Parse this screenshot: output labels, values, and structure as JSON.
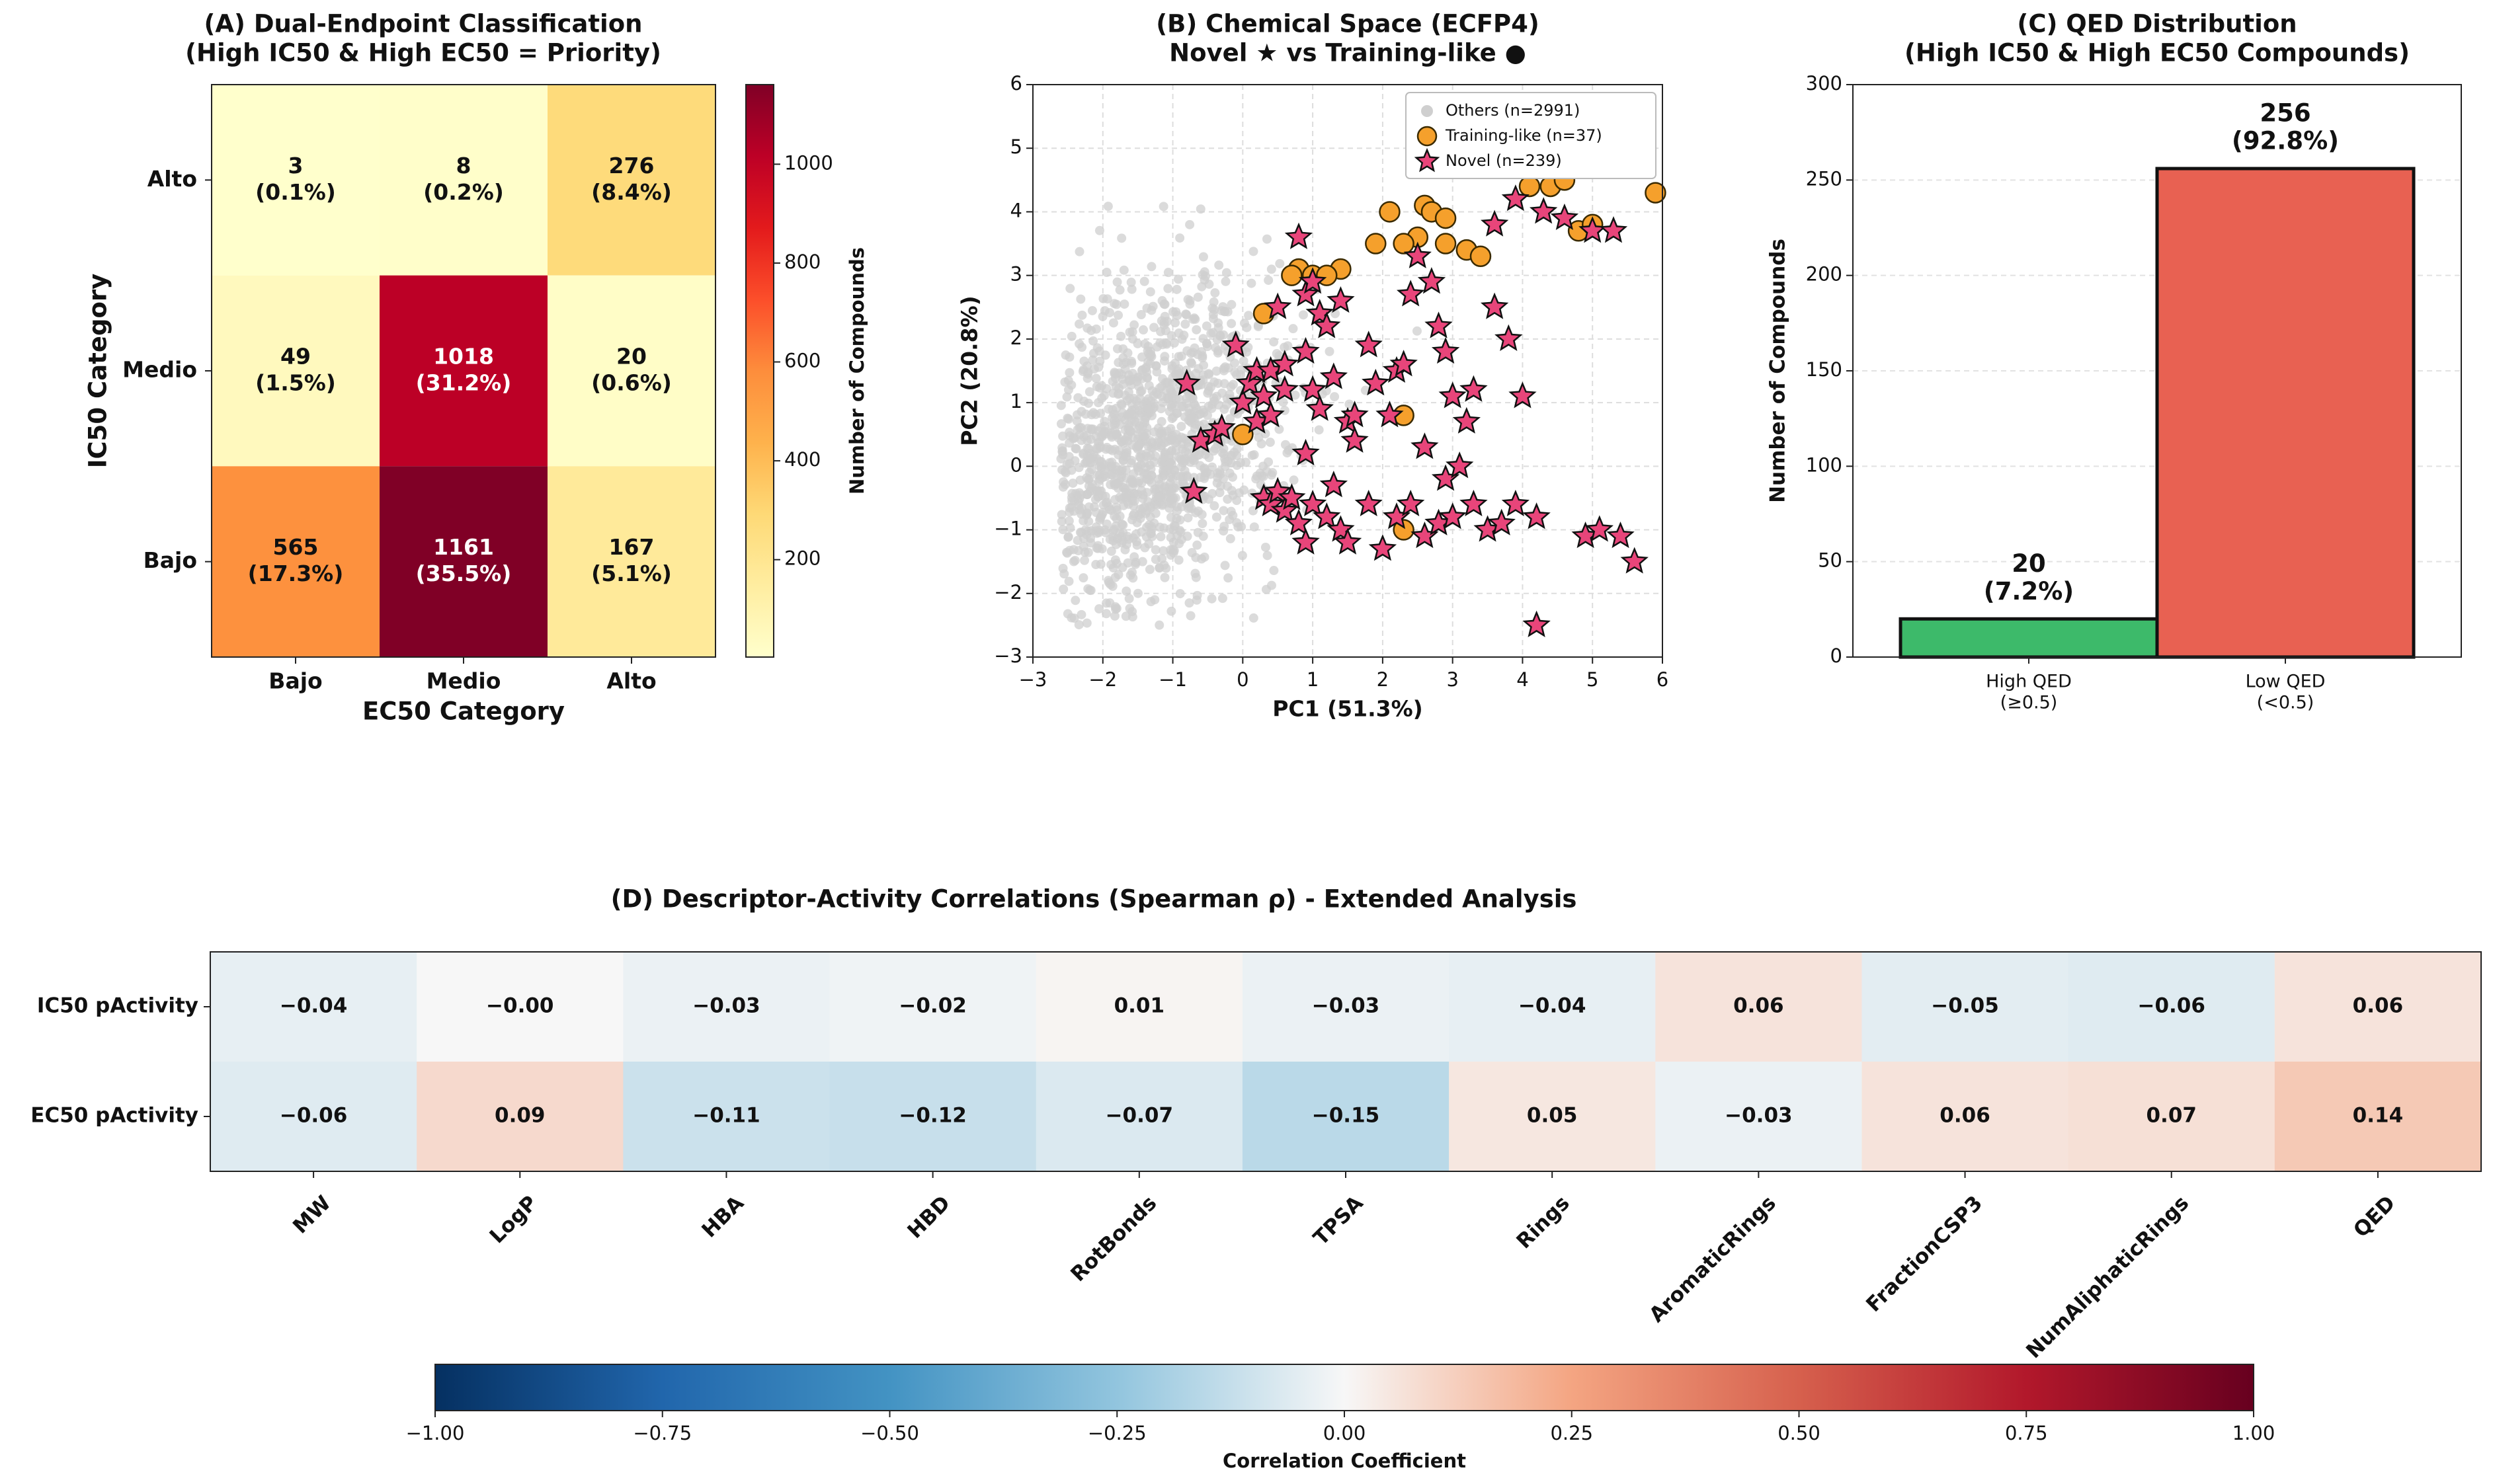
{
  "chart_data": [
    {
      "id": "A",
      "type": "heatmap",
      "title": "(A) Dual-Endpoint Classification",
      "subtitle": "(High IC50 & High EC50 = Priority)",
      "xlabel": "EC50 Category",
      "ylabel": "IC50 Category",
      "x_categories": [
        "Bajo",
        "Medio",
        "Alto"
      ],
      "y_categories": [
        "Alto",
        "Medio",
        "Bajo"
      ],
      "counts": [
        [
          3,
          8,
          276
        ],
        [
          49,
          1018,
          20
        ],
        [
          565,
          1161,
          167
        ]
      ],
      "percents": [
        [
          "(0.1%)",
          "(0.2%)",
          "(8.4%)"
        ],
        [
          "(1.5%)",
          "(31.2%)",
          "(0.6%)"
        ],
        [
          "(17.3%)",
          "(35.5%)",
          "(5.1%)"
        ]
      ],
      "colorbar": {
        "label": "Number of Compounds",
        "range": [
          3,
          1161
        ],
        "ticks": [
          200,
          400,
          600,
          800,
          1000
        ]
      }
    },
    {
      "id": "B",
      "type": "scatter",
      "title": "(B) Chemical Space (ECFP4)",
      "subtitle": "Novel ★ vs Training-like ●",
      "xlabel": "PC1 (51.3%)",
      "ylabel": "PC2 (20.8%)",
      "xlim": [
        -3,
        6
      ],
      "ylim": [
        -3,
        6
      ],
      "xticks": [
        -3,
        -2,
        -1,
        0,
        1,
        2,
        3,
        4,
        5,
        6
      ],
      "yticks": [
        -3,
        -2,
        -1,
        0,
        1,
        2,
        3,
        4,
        5,
        6
      ],
      "grid": true,
      "legend_position": "top-right",
      "series": [
        {
          "name": "Others (n=2991)",
          "color": "#cfcfcf",
          "cloud_center": [
            -1.4,
            0.3
          ],
          "cloud_spread": [
            1.0,
            1.2
          ]
        },
        {
          "name": "Training-like (n=37)",
          "color": "#f5a02c",
          "points": [
            [
              0.3,
              2.4
            ],
            [
              0.8,
              3.1
            ],
            [
              0.7,
              3.0
            ],
            [
              1.0,
              3.0
            ],
            [
              1.4,
              3.1
            ],
            [
              1.2,
              3.0
            ],
            [
              1.9,
              3.5
            ],
            [
              2.1,
              4.0
            ],
            [
              2.6,
              4.1
            ],
            [
              2.7,
              4.0
            ],
            [
              2.9,
              3.9
            ],
            [
              2.5,
              3.6
            ],
            [
              2.9,
              3.5
            ],
            [
              3.2,
              3.4
            ],
            [
              3.4,
              3.3
            ],
            [
              2.3,
              3.5
            ],
            [
              4.4,
              4.4
            ],
            [
              4.6,
              4.5
            ],
            [
              4.1,
              4.4
            ],
            [
              4.8,
              3.7
            ],
            [
              5.0,
              3.8
            ],
            [
              5.9,
              4.3
            ],
            [
              0.0,
              0.5
            ],
            [
              2.3,
              -1.0
            ],
            [
              2.3,
              0.8
            ]
          ]
        },
        {
          "name": "Novel (n=239)",
          "color": "#e8457a",
          "points": [
            [
              -0.8,
              1.3
            ],
            [
              -0.7,
              -0.4
            ],
            [
              -0.6,
              0.4
            ],
            [
              -0.4,
              0.5
            ],
            [
              -0.3,
              0.6
            ],
            [
              -0.1,
              1.9
            ],
            [
              0.0,
              1.0
            ],
            [
              0.1,
              1.3
            ],
            [
              0.2,
              1.5
            ],
            [
              0.3,
              1.1
            ],
            [
              0.2,
              0.7
            ],
            [
              0.4,
              1.5
            ],
            [
              0.5,
              2.5
            ],
            [
              0.6,
              1.6
            ],
            [
              0.6,
              1.2
            ],
            [
              0.4,
              0.8
            ],
            [
              0.8,
              3.6
            ],
            [
              0.9,
              2.7
            ],
            [
              1.0,
              2.9
            ],
            [
              1.1,
              2.4
            ],
            [
              1.2,
              2.2
            ],
            [
              0.9,
              1.8
            ],
            [
              1.0,
              1.2
            ],
            [
              1.1,
              0.9
            ],
            [
              1.3,
              1.4
            ],
            [
              1.4,
              2.6
            ],
            [
              1.5,
              0.7
            ],
            [
              1.6,
              0.8
            ],
            [
              1.8,
              1.9
            ],
            [
              1.9,
              1.3
            ],
            [
              2.1,
              0.8
            ],
            [
              2.2,
              1.5
            ],
            [
              2.3,
              1.6
            ],
            [
              2.4,
              2.7
            ],
            [
              2.5,
              3.3
            ],
            [
              2.7,
              2.9
            ],
            [
              2.8,
              2.2
            ],
            [
              2.9,
              1.8
            ],
            [
              3.0,
              1.1
            ],
            [
              3.2,
              0.7
            ],
            [
              3.3,
              1.2
            ],
            [
              3.6,
              2.5
            ],
            [
              3.8,
              2.0
            ],
            [
              4.0,
              1.1
            ],
            [
              4.3,
              4.0
            ],
            [
              4.6,
              3.9
            ],
            [
              5.0,
              3.7
            ],
            [
              5.3,
              3.7
            ],
            [
              3.6,
              3.8
            ],
            [
              3.9,
              4.2
            ],
            [
              0.3,
              -0.5
            ],
            [
              0.4,
              -0.6
            ],
            [
              0.5,
              -0.4
            ],
            [
              0.6,
              -0.7
            ],
            [
              0.7,
              -0.5
            ],
            [
              0.8,
              -0.9
            ],
            [
              0.9,
              -1.2
            ],
            [
              1.0,
              -0.6
            ],
            [
              1.2,
              -0.8
            ],
            [
              1.4,
              -1.0
            ],
            [
              1.5,
              -1.2
            ],
            [
              1.8,
              -0.6
            ],
            [
              2.0,
              -1.3
            ],
            [
              2.2,
              -0.8
            ],
            [
              2.4,
              -0.6
            ],
            [
              2.6,
              -1.1
            ],
            [
              2.8,
              -0.9
            ],
            [
              3.0,
              -0.8
            ],
            [
              3.3,
              -0.6
            ],
            [
              3.5,
              -1.0
            ],
            [
              3.7,
              -0.9
            ],
            [
              3.9,
              -0.6
            ],
            [
              4.2,
              -0.8
            ],
            [
              4.2,
              -2.5
            ],
            [
              4.9,
              -1.1
            ],
            [
              5.1,
              -1.0
            ],
            [
              5.4,
              -1.1
            ],
            [
              5.6,
              -1.5
            ],
            [
              0.9,
              0.2
            ],
            [
              1.3,
              -0.3
            ],
            [
              1.6,
              0.4
            ],
            [
              2.6,
              0.3
            ],
            [
              2.9,
              -0.2
            ],
            [
              3.1,
              0.0
            ]
          ]
        }
      ]
    },
    {
      "id": "C",
      "type": "bar",
      "title": "(C) QED Distribution",
      "subtitle": "(High IC50 & High EC50 Compounds)",
      "xlabel": "",
      "ylabel": "Number of Compounds",
      "ylim": [
        0,
        300
      ],
      "yticks": [
        0,
        50,
        100,
        150,
        200,
        250,
        300
      ],
      "categories": [
        {
          "label": "High QED",
          "sublabel": "(≥0.5)"
        },
        {
          "label": "Low QED",
          "sublabel": "(<0.5)"
        }
      ],
      "values": [
        20,
        256
      ],
      "value_labels": [
        "20",
        "256"
      ],
      "percent_labels": [
        "(7.2%)",
        "(92.8%)"
      ],
      "colors": [
        "#3dba6a",
        "#e86152"
      ]
    },
    {
      "id": "D",
      "type": "heatmap",
      "title": "(D) Descriptor-Activity Correlations (Spearman ρ) - Extended Analysis",
      "rows": [
        "IC50 pActivity",
        "EC50 pActivity"
      ],
      "columns": [
        "MW",
        "LogP",
        "HBA",
        "HBD",
        "RotBonds",
        "TPSA",
        "Rings",
        "AromaticRings",
        "FractionCSP3",
        "NumAliphaticRings",
        "QED"
      ],
      "values": [
        [
          -0.04,
          -0.0,
          -0.03,
          -0.02,
          0.01,
          -0.03,
          -0.04,
          0.06,
          -0.05,
          -0.06,
          0.06
        ],
        [
          -0.06,
          0.09,
          -0.11,
          -0.12,
          -0.07,
          -0.15,
          0.05,
          -0.03,
          0.06,
          0.07,
          0.14
        ]
      ],
      "value_labels": [
        [
          "−0.04",
          "−0.00",
          "−0.03",
          "−0.02",
          "0.01",
          "−0.03",
          "−0.04",
          "0.06",
          "−0.05",
          "−0.06",
          "0.06"
        ],
        [
          "−0.06",
          "0.09",
          "−0.11",
          "−0.12",
          "−0.07",
          "−0.15",
          "0.05",
          "−0.03",
          "0.06",
          "0.07",
          "0.14"
        ]
      ],
      "colorbar": {
        "label": "Correlation Coefficient",
        "range": [
          -1.0,
          1.0
        ],
        "ticks": [
          -1.0,
          -0.75,
          -0.5,
          -0.25,
          0.0,
          0.25,
          0.5,
          0.75,
          1.0
        ],
        "tick_labels": [
          "−1.00",
          "−0.75",
          "−0.50",
          "−0.25",
          "0.00",
          "0.25",
          "0.50",
          "0.75",
          "1.00"
        ]
      }
    }
  ]
}
